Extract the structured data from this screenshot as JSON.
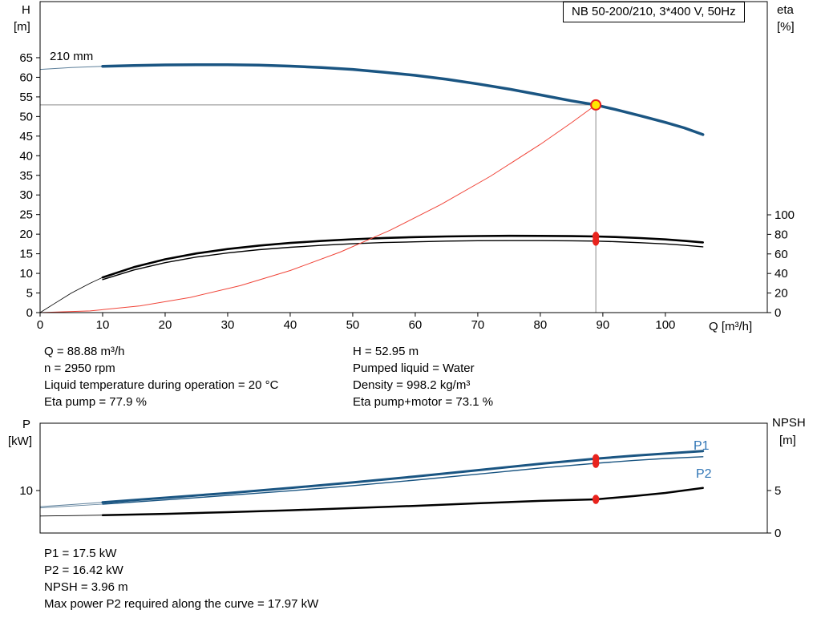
{
  "title_box": "NB 50-200/210, 3*400 V, 50Hz",
  "info_top_left": [
    "Q = 88.88 m³/h",
    "n = 2950 rpm",
    "Liquid temperature during operation = 20 °C",
    "Eta pump = 77.9 %"
  ],
  "info_top_right": [
    "H = 52.95 m",
    "Pumped liquid = Water",
    "Density = 998.2 kg/m³",
    "Eta pump+motor = 73.1 %"
  ],
  "info_bottom": [
    "P1 = 17.5 kW",
    "P2 = 16.42 kW",
    "NPSH = 3.96 m",
    "Max power P2 required along the curve = 17.97 kW"
  ],
  "colors": {
    "curve_blue": "#1a5582",
    "curve_lead": "#5c7f9a",
    "curve_black": "#000000",
    "system_red": "#f04438",
    "marker_red": "#e8231d",
    "duty_yellow": "#ffe800",
    "crosshair_gray": "#8a8a8a",
    "label_blue": "#2e74b5"
  },
  "chart_data": [
    {
      "id": "hq",
      "type": "line",
      "title": "NB 50-200/210, 3*400 V, 50Hz",
      "annotation": "210 mm",
      "x": {
        "label": "Q [m³/h]",
        "min": 0,
        "max": 116.3,
        "ticks": [
          0,
          10,
          20,
          30,
          40,
          50,
          60,
          70,
          80,
          90,
          100
        ]
      },
      "axes": [
        {
          "id": "H",
          "label_lines": [
            "H",
            "[m]"
          ],
          "side": "left",
          "min": 0,
          "max": 79.3,
          "ticks": [
            0,
            5,
            10,
            15,
            20,
            25,
            30,
            35,
            40,
            45,
            50,
            55,
            60,
            65
          ]
        },
        {
          "id": "eta",
          "label_lines": [
            "eta",
            "[%]"
          ],
          "side": "right",
          "min": 0,
          "max": 318,
          "ticks": [
            0,
            20,
            40,
            60,
            80,
            100
          ]
        }
      ],
      "series": [
        {
          "name": "pump-curve-lead",
          "axis": "H",
          "color": "#5c7f9a",
          "width": 1,
          "points": [
            [
              0,
              62.0
            ],
            [
              5,
              62.5
            ],
            [
              10,
              62.8
            ]
          ]
        },
        {
          "name": "pump-curve-210mm",
          "axis": "H",
          "color": "#1a5582",
          "width": 3.5,
          "points": [
            [
              10,
              62.8
            ],
            [
              15,
              63.0
            ],
            [
              20,
              63.15
            ],
            [
              25,
              63.2
            ],
            [
              30,
              63.2
            ],
            [
              35,
              63.1
            ],
            [
              40,
              62.85
            ],
            [
              45,
              62.5
            ],
            [
              50,
              62.0
            ],
            [
              55,
              61.3
            ],
            [
              60,
              60.5
            ],
            [
              65,
              59.5
            ],
            [
              70,
              58.3
            ],
            [
              75,
              57.0
            ],
            [
              80,
              55.5
            ],
            [
              85,
              54.0
            ],
            [
              88.88,
              52.95
            ],
            [
              92,
              51.8
            ],
            [
              96,
              50.2
            ],
            [
              100,
              48.5
            ],
            [
              103,
              47.1
            ],
            [
              106,
              45.4
            ]
          ]
        },
        {
          "name": "eta-pump-curve-lead",
          "axis": "eta",
          "color": "#000000",
          "width": 0.8,
          "points": [
            [
              0,
              0
            ],
            [
              2,
              8
            ],
            [
              5,
              20
            ],
            [
              8,
              30
            ],
            [
              10,
              36
            ]
          ]
        },
        {
          "name": "eta-pump-curve",
          "axis": "eta",
          "color": "#000000",
          "width": 2.6,
          "points": [
            [
              10,
              36
            ],
            [
              15,
              46.5
            ],
            [
              20,
              54.5
            ],
            [
              25,
              60.5
            ],
            [
              30,
              65
            ],
            [
              35,
              68.5
            ],
            [
              40,
              71.2
            ],
            [
              45,
              73.3
            ],
            [
              50,
              75.0
            ],
            [
              55,
              76.3
            ],
            [
              60,
              77.2
            ],
            [
              65,
              77.9
            ],
            [
              70,
              78.3
            ],
            [
              75,
              78.5
            ],
            [
              80,
              78.4
            ],
            [
              85,
              78.2
            ],
            [
              88.88,
              77.9
            ],
            [
              92,
              77.3
            ],
            [
              96,
              76.2
            ],
            [
              100,
              74.8
            ],
            [
              103,
              73.4
            ],
            [
              106,
              71.8
            ]
          ]
        },
        {
          "name": "eta-pump-motor-curve",
          "axis": "eta",
          "color": "#000000",
          "width": 1.4,
          "points": [
            [
              10,
              33.8
            ],
            [
              15,
              43.6
            ],
            [
              20,
              51.1
            ],
            [
              25,
              56.8
            ],
            [
              30,
              61.0
            ],
            [
              35,
              64.3
            ],
            [
              40,
              66.8
            ],
            [
              45,
              68.8
            ],
            [
              50,
              70.4
            ],
            [
              55,
              71.6
            ],
            [
              60,
              72.4
            ],
            [
              65,
              73.1
            ],
            [
              70,
              73.5
            ],
            [
              75,
              73.6
            ],
            [
              80,
              73.6
            ],
            [
              85,
              73.4
            ],
            [
              88.88,
              73.1
            ],
            [
              92,
              72.5
            ],
            [
              96,
              71.5
            ],
            [
              100,
              70.2
            ],
            [
              103,
              68.9
            ],
            [
              106,
              67.3
            ]
          ]
        },
        {
          "name": "system-curve",
          "axis": "H",
          "color": "#f04438",
          "width": 1,
          "points": [
            [
              0,
              0
            ],
            [
              8,
              0.43
            ],
            [
              16,
              1.72
            ],
            [
              24,
              3.86
            ],
            [
              32,
              6.86
            ],
            [
              40,
              10.72
            ],
            [
              48,
              15.44
            ],
            [
              56,
              21.02
            ],
            [
              64,
              27.46
            ],
            [
              72,
              34.75
            ],
            [
              80,
              42.9
            ],
            [
              85,
              48.43
            ],
            [
              88.88,
              52.95
            ]
          ]
        }
      ],
      "crosshair": {
        "x": 88.88,
        "y": 52.95,
        "axis": "H"
      },
      "markers": [
        {
          "kind": "duty",
          "x": 88.88,
          "y": 52.95,
          "axis": "H",
          "name": "duty-point-marker"
        },
        {
          "kind": "dot",
          "x": 88.88,
          "y": 77.9,
          "axis": "eta",
          "name": "eta-pump-dot"
        },
        {
          "kind": "dot",
          "x": 88.88,
          "y": 73.1,
          "axis": "eta",
          "name": "eta-pump-motor-dot"
        }
      ]
    },
    {
      "id": "pq",
      "type": "line",
      "x": {
        "label": "",
        "min": 0,
        "max": 116.3,
        "ticks": []
      },
      "axes": [
        {
          "id": "P",
          "label_lines": [
            "P",
            "[kW]"
          ],
          "side": "left",
          "min": 0,
          "max": 25.85,
          "ticks": [
            10
          ]
        },
        {
          "id": "NPSH",
          "label_lines": [
            "NPSH",
            "[m]"
          ],
          "side": "right",
          "min": 0,
          "max": 12.92,
          "ticks": [
            0,
            5
          ]
        }
      ],
      "labels": {
        "p1": "P1",
        "p2": "P2"
      },
      "series": [
        {
          "name": "p1-curve-lead",
          "axis": "P",
          "color": "#5c7f9a",
          "width": 1,
          "points": [
            [
              0,
              6.2
            ],
            [
              5,
              6.7
            ],
            [
              10,
              7.2
            ]
          ]
        },
        {
          "name": "p1-curve",
          "axis": "P",
          "color": "#1a5582",
          "width": 3,
          "points": [
            [
              10,
              7.2
            ],
            [
              20,
              8.3
            ],
            [
              30,
              9.4
            ],
            [
              40,
              10.6
            ],
            [
              50,
              11.9
            ],
            [
              60,
              13.3
            ],
            [
              70,
              14.8
            ],
            [
              80,
              16.3
            ],
            [
              88.88,
              17.5
            ],
            [
              95,
              18.2
            ],
            [
              100,
              18.7
            ],
            [
              106,
              19.3
            ]
          ]
        },
        {
          "name": "p2-curve-lead",
          "axis": "P",
          "color": "#5c7f9a",
          "width": 0.8,
          "points": [
            [
              0,
              5.9
            ],
            [
              5,
              6.35
            ],
            [
              10,
              6.8
            ]
          ]
        },
        {
          "name": "p2-curve",
          "axis": "P",
          "color": "#1a5582",
          "width": 1.4,
          "points": [
            [
              10,
              6.8
            ],
            [
              20,
              7.8
            ],
            [
              30,
              8.85
            ],
            [
              40,
              9.95
            ],
            [
              50,
              11.15
            ],
            [
              60,
              12.45
            ],
            [
              70,
              13.85
            ],
            [
              80,
              15.3
            ],
            [
              88.88,
              16.42
            ],
            [
              95,
              17.1
            ],
            [
              100,
              17.55
            ],
            [
              106,
              17.97
            ]
          ]
        },
        {
          "name": "npsh-curve-lead",
          "axis": "NPSH",
          "color": "#000000",
          "width": 0.8,
          "points": [
            [
              0,
              2.0
            ],
            [
              5,
              2.05
            ],
            [
              10,
              2.1
            ]
          ]
        },
        {
          "name": "npsh-curve",
          "axis": "NPSH",
          "color": "#000000",
          "width": 2.5,
          "points": [
            [
              10,
              2.1
            ],
            [
              20,
              2.25
            ],
            [
              30,
              2.45
            ],
            [
              40,
              2.68
            ],
            [
              50,
              2.93
            ],
            [
              60,
              3.2
            ],
            [
              70,
              3.5
            ],
            [
              80,
              3.78
            ],
            [
              88.88,
              3.96
            ],
            [
              95,
              4.35
            ],
            [
              100,
              4.72
            ],
            [
              106,
              5.3
            ]
          ]
        }
      ],
      "markers": [
        {
          "kind": "dot",
          "x": 88.88,
          "y": 17.5,
          "axis": "P",
          "name": "p1-dot"
        },
        {
          "kind": "dot",
          "x": 88.88,
          "y": 16.42,
          "axis": "P",
          "name": "p2-dot"
        },
        {
          "kind": "dot",
          "x": 88.88,
          "y": 3.96,
          "axis": "NPSH",
          "name": "npsh-dot"
        }
      ]
    }
  ]
}
